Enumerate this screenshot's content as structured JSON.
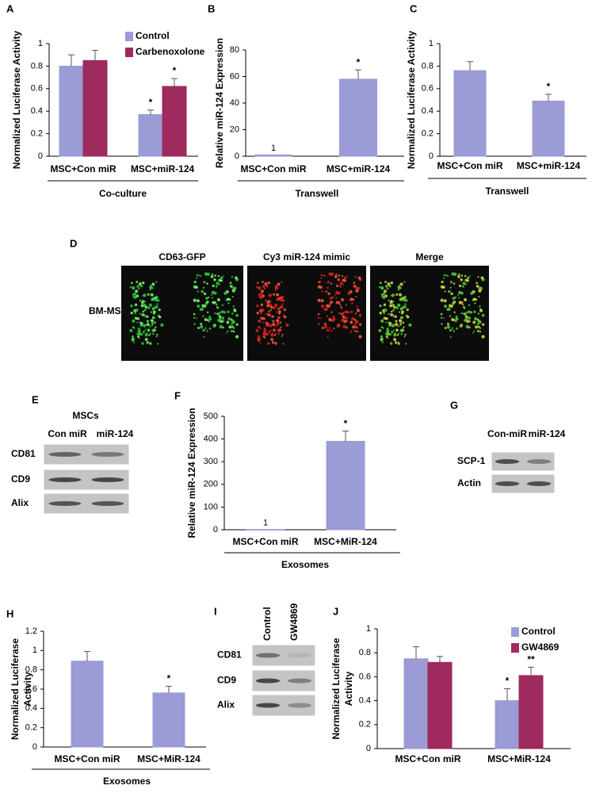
{
  "chart_data": [
    {
      "type": "bar",
      "panel": "A",
      "ylabel": "Normalized Luciferase Activity",
      "categories": [
        "MSC+Con miR",
        "MSC+miR-124"
      ],
      "series": [
        {
          "name": "Control",
          "color": "#9b9bd5",
          "values": [
            0.8,
            0.37
          ],
          "errors": [
            0.1,
            0.04
          ],
          "significance": [
            null,
            "*"
          ]
        },
        {
          "name": "Carbenoxolone",
          "color": "#9e2a5e",
          "values": [
            0.85,
            0.62
          ],
          "errors": [
            0.09,
            0.07
          ],
          "significance": [
            null,
            "*"
          ]
        }
      ],
      "group_label": "Co-culture",
      "ylim": [
        0,
        1
      ],
      "yticks": [
        0,
        0.2,
        0.4,
        0.6,
        0.8,
        1
      ]
    },
    {
      "type": "bar",
      "panel": "B",
      "ylabel": "Relative miR-124 Expression",
      "categories": [
        "MSC+Con miR",
        "MSC+miR-124"
      ],
      "series": [
        {
          "color": "#9b9bd5",
          "values": [
            1,
            58
          ],
          "errors": [
            0,
            7
          ],
          "value_labels": [
            "1",
            null
          ],
          "significance": [
            null,
            "*"
          ]
        }
      ],
      "group_label": "Transwell",
      "ylim": [
        0,
        80
      ],
      "yticks": [
        0,
        20,
        40,
        60,
        80
      ]
    },
    {
      "type": "bar",
      "panel": "C",
      "ylabel": "Normalized Luciferase Activity",
      "categories": [
        "MSC+Con miR",
        "MSC+miR-124"
      ],
      "series": [
        {
          "color": "#9b9bd5",
          "values": [
            0.76,
            0.49
          ],
          "errors": [
            0.08,
            0.06
          ],
          "significance": [
            null,
            "*"
          ]
        }
      ],
      "group_label": "Transwell",
      "ylim": [
        0,
        1
      ],
      "yticks": [
        0,
        0.2,
        0.4,
        0.6,
        0.8,
        1
      ]
    },
    {
      "type": "bar",
      "panel": "F",
      "ylabel": "Relative miR-124 Expression",
      "categories": [
        "MSC+Con miR",
        "MSC+MiR-124"
      ],
      "series": [
        {
          "color": "#9b9bd5",
          "values": [
            1,
            390
          ],
          "errors": [
            0,
            45
          ],
          "value_labels": [
            "1",
            null
          ],
          "significance": [
            null,
            "*"
          ]
        }
      ],
      "group_label": "Exosomes",
      "ylim": [
        0,
        500
      ],
      "yticks": [
        0,
        100,
        200,
        300,
        400,
        500
      ]
    },
    {
      "type": "bar",
      "panel": "H",
      "ylabel": [
        "Normalized Luciferase",
        "Activity"
      ],
      "categories": [
        "MSC+Con miR",
        "MSC+MiR-124"
      ],
      "series": [
        {
          "color": "#9b9bd5",
          "values": [
            0.89,
            0.56
          ],
          "errors": [
            0.1,
            0.07
          ],
          "significance": [
            null,
            "*"
          ]
        }
      ],
      "group_label": "Exosomes",
      "ylim": [
        0,
        1.2
      ],
      "yticks": [
        0,
        0.2,
        0.4,
        0.6,
        0.8,
        1,
        1.2
      ]
    },
    {
      "type": "bar",
      "panel": "J",
      "ylabel": [
        "Normalized Luciferase",
        "Activity"
      ],
      "categories": [
        "MSC+Con miR",
        "MSC+MiR-124"
      ],
      "series": [
        {
          "name": "Control",
          "color": "#9b9bd5",
          "values": [
            0.75,
            0.4
          ],
          "errors": [
            0.1,
            0.1
          ],
          "significance": [
            null,
            "*"
          ]
        },
        {
          "name": "GW4869",
          "color": "#9e2a5e",
          "values": [
            0.72,
            0.61
          ],
          "errors": [
            0.05,
            0.07
          ],
          "significance": [
            null,
            "**"
          ]
        }
      ],
      "ylim": [
        0,
        1
      ],
      "yticks": [
        0,
        0.2,
        0.4,
        0.6,
        0.8,
        1
      ]
    }
  ],
  "panel_d": {
    "label": "D",
    "columns": [
      "CD63-GFP",
      "Cy3 miR-124 mimic",
      "Merge"
    ],
    "row_label": "BM-MSC"
  },
  "panel_e": {
    "label": "E",
    "title": "MSCs",
    "columns": [
      "Con miR",
      "miR-124"
    ],
    "rows": [
      "CD81",
      "CD9",
      "Alix"
    ]
  },
  "panel_g": {
    "label": "G",
    "columns": [
      "Con-miR",
      "miR-124"
    ],
    "rows": [
      "SCP-1",
      "Actin"
    ]
  },
  "panel_i": {
    "label": "I",
    "columns": [
      "Control",
      "GW4869"
    ],
    "rows": [
      "CD81",
      "CD9",
      "Alix"
    ]
  }
}
